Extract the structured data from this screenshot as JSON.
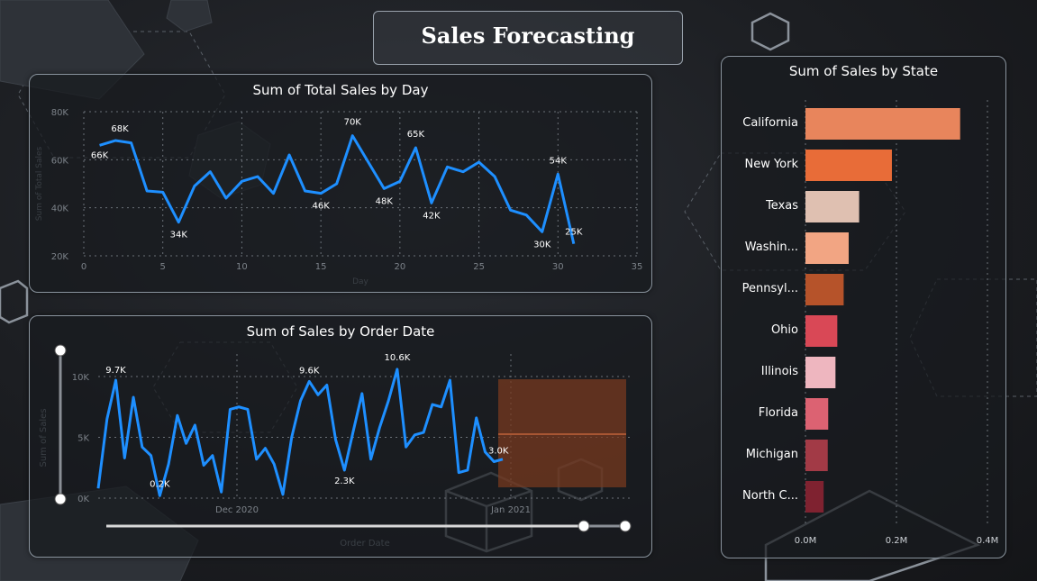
{
  "page": {
    "title": "Sales Forecasting"
  },
  "colors": {
    "line": "#1e8fff",
    "forecast": "#7a3a1e",
    "grid": "#6b7178"
  },
  "panel_daily": {
    "title": "Sum of Total Sales by Day",
    "xlabel": "Day",
    "ylabel": "Sum of Total Sales",
    "xticks": [
      "0",
      "5",
      "10",
      "15",
      "20",
      "25",
      "30",
      "35"
    ],
    "yticks": [
      "20K",
      "40K",
      "60K",
      "80K"
    ],
    "labels": [
      "66K",
      "68K",
      "34K",
      "70K",
      "46K",
      "48K",
      "65K",
      "42K",
      "54K",
      "30K",
      "25K"
    ]
  },
  "panel_order": {
    "title": "Sum of Sales by Order Date",
    "xlabel": "Order Date",
    "ylabel": "Sum of Sales",
    "yticks": [
      "0K",
      "5K",
      "10K"
    ],
    "xticks": [
      "Dec 2020",
      "Jan 2021"
    ],
    "labels": [
      "9.7K",
      "0.2K",
      "9.6K",
      "10.6K",
      "2.3K",
      "3.0K"
    ]
  },
  "panel_state": {
    "title": "Sum of Sales by State",
    "xticks": [
      "0.0M",
      "0.2M",
      "0.4M"
    ],
    "categories": [
      "California",
      "New York",
      "Texas",
      "Washin...",
      "Pennsyl...",
      "Ohio",
      "Illinois",
      "Florida",
      "Michigan",
      "North C..."
    ],
    "colors": [
      "#e8855c",
      "#e86c38",
      "#dfc0b1",
      "#f2a583",
      "#b6532a",
      "#d94856",
      "#eeb6bf",
      "#dc6272",
      "#a23a46",
      "#7f2230"
    ]
  },
  "chart_data": [
    {
      "type": "line",
      "title": "Sum of Total Sales by Day",
      "xlabel": "Day",
      "ylabel": "Sum of Total Sales",
      "xlim": [
        0,
        35
      ],
      "ylim": [
        20000,
        80000
      ],
      "x": [
        1,
        2,
        3,
        4,
        5,
        6,
        7,
        8,
        9,
        10,
        11,
        12,
        13,
        14,
        15,
        16,
        17,
        18,
        19,
        20,
        21,
        22,
        23,
        24,
        25,
        26,
        27,
        28,
        29,
        30,
        31
      ],
      "series": [
        {
          "values": [
            66000,
            68000,
            67000,
            47000,
            46500,
            34000,
            49000,
            55000,
            44000,
            51000,
            53000,
            46000,
            62000,
            47000,
            46000,
            50000,
            70000,
            59000,
            48000,
            51000,
            65000,
            42000,
            57000,
            55000,
            59000,
            53000,
            39000,
            37000,
            30000,
            54000,
            25000
          ]
        }
      ]
    },
    {
      "type": "line",
      "title": "Sum of Sales by Order Date",
      "xlabel": "Order Date",
      "ylabel": "Sum of Sales",
      "ylim": [
        0,
        10600
      ],
      "xticks": [
        "Dec 2020",
        "Jan 2021"
      ],
      "series": [
        {
          "values": [
            800,
            6500,
            9700,
            3300,
            8300,
            4200,
            3500,
            200,
            2800,
            6800,
            4500,
            6000,
            2700,
            3500,
            500,
            7300,
            7500,
            7300,
            3200,
            4100,
            2800,
            300,
            5000,
            8000,
            9600,
            8500,
            9300,
            4800,
            2300,
            5500,
            8600,
            3200,
            5800,
            8000,
            10600,
            4200,
            5200,
            5400,
            7700,
            7500,
            9700,
            2100,
            2300,
            6600,
            3800,
            3000,
            3200
          ]
        }
      ]
    },
    {
      "type": "bar",
      "orientation": "horizontal",
      "title": "Sum of Sales by State",
      "categories": [
        "California",
        "New York",
        "Texas",
        "Washin...",
        "Pennsyl...",
        "Ohio",
        "Illinois",
        "Florida",
        "Michigan",
        "North C..."
      ],
      "values": [
        340000,
        190000,
        118000,
        95000,
        84000,
        70000,
        66000,
        50000,
        49000,
        40000
      ],
      "xlim": [
        0,
        400000
      ]
    }
  ]
}
